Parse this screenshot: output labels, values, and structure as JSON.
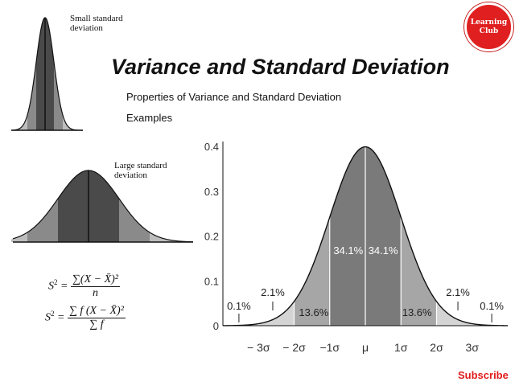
{
  "title": "Variance and Standard Deviation",
  "menu": [
    "Properties of Variance and Standard Deviation",
    "Examples"
  ],
  "logo": {
    "line1": "Learning",
    "line2": "Club"
  },
  "small_sd": {
    "line1": "Small standard",
    "line2": "deviation"
  },
  "large_sd": {
    "line1": "Large standard",
    "line2": "deviation"
  },
  "formula1": {
    "lhs": "S",
    "exp": "2",
    "num": "∑(X − X̄)²",
    "den": "n"
  },
  "formula2": {
    "lhs": "S",
    "exp": "2",
    "num": "∑ f (X − X̄)²",
    "den": "∑ f"
  },
  "subscribe": "Subscribe",
  "chart_data": {
    "type": "area",
    "y_ticks": [
      "0.4",
      "0.3",
      "0.2",
      "0.1",
      "0"
    ],
    "x_ticks": [
      "− 3σ",
      "− 2σ",
      "−1σ",
      "μ",
      "1σ",
      "2σ",
      "3σ"
    ],
    "ylim": [
      0,
      0.4
    ],
    "regions": [
      {
        "label": "0.1%",
        "from": -4,
        "to": -3
      },
      {
        "label": "2.1%",
        "from": -3,
        "to": -2
      },
      {
        "label": "13.6%",
        "from": -2,
        "to": -1
      },
      {
        "label": "34.1%",
        "from": -1,
        "to": 0
      },
      {
        "label": "34.1%",
        "from": 0,
        "to": 1
      },
      {
        "label": "13.6%",
        "from": 1,
        "to": 2
      },
      {
        "label": "2.1%",
        "from": 2,
        "to": 3
      },
      {
        "label": "0.1%",
        "from": 3,
        "to": 4
      }
    ],
    "colors": {
      "outer": "#d4d4d4",
      "mid": "#a6a6a6",
      "inner": "#7a7a7a"
    }
  }
}
